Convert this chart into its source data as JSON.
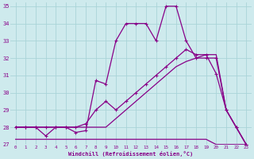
{
  "xlabel": "Windchill (Refroidissement éolien,°C)",
  "background_color": "#ceeaed",
  "grid_color": "#aad4d8",
  "line_color": "#880088",
  "xlim": [
    -0.5,
    23.5
  ],
  "ylim": [
    27,
    35.2
  ],
  "yticks": [
    27,
    28,
    29,
    30,
    31,
    32,
    33,
    34,
    35
  ],
  "xticks": [
    0,
    1,
    2,
    3,
    4,
    5,
    6,
    7,
    8,
    9,
    10,
    11,
    12,
    13,
    14,
    15,
    16,
    17,
    18,
    19,
    20,
    21,
    22,
    23
  ],
  "series": [
    {
      "x": [
        0,
        1,
        2,
        3,
        4,
        5,
        6,
        7,
        8,
        9,
        10,
        11,
        12,
        13,
        14,
        15,
        16,
        17,
        18,
        19,
        20,
        21,
        22,
        23
      ],
      "y": [
        27.3,
        27.3,
        27.3,
        27.3,
        27.3,
        27.3,
        27.3,
        27.3,
        27.3,
        27.3,
        27.3,
        27.3,
        27.3,
        27.3,
        27.3,
        27.3,
        27.3,
        27.3,
        27.3,
        27.3,
        27.0,
        27.0,
        27.0,
        27.0
      ],
      "marker": false
    },
    {
      "x": [
        0,
        1,
        2,
        3,
        4,
        5,
        6,
        7,
        8,
        9,
        10,
        11,
        12,
        13,
        14,
        15,
        16,
        17,
        18,
        19,
        20,
        21,
        22,
        23
      ],
      "y": [
        28,
        28,
        28,
        28,
        28,
        28,
        28,
        28,
        28,
        28,
        28.5,
        29.0,
        29.5,
        30.0,
        30.5,
        31.0,
        31.5,
        31.8,
        32.0,
        32.2,
        32.2,
        29.0,
        28.0,
        27.0
      ],
      "marker": false
    },
    {
      "x": [
        0,
        1,
        2,
        3,
        4,
        5,
        6,
        7,
        8,
        9,
        10,
        11,
        12,
        13,
        14,
        15,
        16,
        17,
        18,
        19,
        20,
        21,
        22,
        23
      ],
      "y": [
        28,
        28,
        28,
        28,
        28,
        28,
        28,
        28.2,
        29.0,
        29.5,
        29.0,
        29.5,
        30.0,
        30.5,
        31.0,
        31.5,
        32.0,
        32.5,
        32.2,
        32.2,
        31.1,
        29.0,
        28.0,
        27.0
      ],
      "marker": true
    },
    {
      "x": [
        0,
        1,
        2,
        3,
        4,
        5,
        6,
        7,
        8,
        9,
        10,
        11,
        12,
        13,
        14,
        15,
        16,
        17,
        18,
        19,
        20,
        21,
        22,
        23
      ],
      "y": [
        28,
        28,
        28,
        27.5,
        28,
        28,
        27.7,
        27.8,
        30.7,
        30.5,
        33.0,
        34.0,
        34.0,
        34.0,
        33.0,
        35.0,
        35.0,
        33.0,
        32.0,
        32.0,
        32.0,
        29.0,
        28.0,
        27.0
      ],
      "marker": true
    }
  ]
}
